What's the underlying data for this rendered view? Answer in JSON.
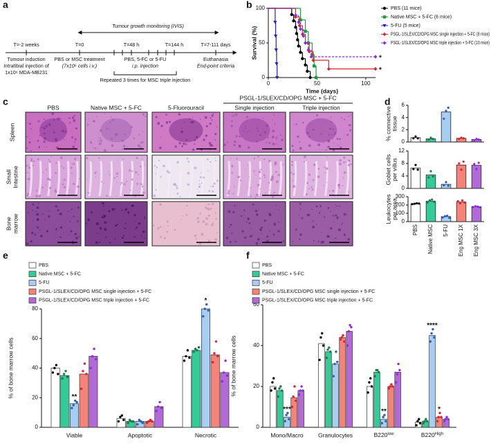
{
  "panel_labels": [
    "a",
    "b",
    "c",
    "d",
    "e",
    "f"
  ],
  "timeline": {
    "title": "Tumour growth monitoring (IVIS)",
    "time_points": [
      "T=-2 weeks",
      "T=0",
      "T=48 h",
      "T=144 h",
      "T=7-111 days"
    ],
    "steps": [
      [
        "Tumour induction",
        "Intratibial injection of",
        "1x10⁶ MDA-MB231"
      ],
      [
        "PBS or MSC treatment",
        "(7x10⁵ cells i.v.)"
      ],
      [
        "PBS, 5-FC or 5-FU",
        "i.p. injection"
      ],
      [
        "Euthanasia",
        "End-point criteria"
      ]
    ],
    "note": "Repeated 3 times for MSC triple injection"
  },
  "histology": {
    "columns": [
      "PBS",
      "Native MSC + 5-FC",
      "5-Fluorouracil"
    ],
    "group_header": "PSGL-1/SLEX/CD/OPG MSC + 5-FC",
    "group_columns": [
      "Single injection",
      "Triple injection"
    ],
    "rows": [
      [
        "Spleen"
      ],
      [
        "Small",
        "Intestine"
      ],
      [
        "Bone",
        "marrow"
      ]
    ]
  },
  "chart_data": [
    {
      "type": "line",
      "ylabel": "Survival (%)",
      "xlabel": "Time (days)",
      "xlim": [
        0,
        110
      ],
      "xticks": [
        0,
        50,
        100
      ],
      "ylim": [
        0,
        100
      ],
      "yticks": [
        0,
        50,
        100
      ],
      "series": [
        {
          "name": "PBS (11 mice)",
          "color": "#000000",
          "marker": "circle",
          "x": [
            0,
            24,
            26,
            28,
            29,
            30,
            31,
            33,
            35,
            38,
            40,
            43
          ],
          "values": [
            100,
            90.9,
            81.8,
            72.7,
            63.6,
            54.5,
            45.5,
            36.4,
            27.3,
            18.2,
            9.1,
            0
          ]
        },
        {
          "name": "Native MSC + 5-FC (6 mice)",
          "color": "#1a9a3a",
          "marker": "square",
          "x": [
            0,
            33,
            38,
            41,
            45,
            47,
            49
          ],
          "values": [
            100,
            83.3,
            66.7,
            50,
            33.3,
            16.7,
            0
          ]
        },
        {
          "name": "5-FU (5 mice)",
          "color": "#2020c0",
          "marker": "triangle",
          "x": [
            0,
            7,
            7.5,
            8,
            8.5,
            9
          ],
          "values": [
            100,
            80,
            60,
            40,
            20,
            0
          ]
        },
        {
          "name": "PSGL-1/SLEX/CD/OPG MSC single injection + 5-FC (8 mice)",
          "color": "#e0202a",
          "marker": "diamond",
          "x": [
            0,
            28,
            32,
            35,
            38,
            42,
            46,
            62,
            110
          ],
          "values": [
            100,
            87.5,
            75,
            62.5,
            50,
            37.5,
            25,
            12.5,
            12.5
          ],
          "annotation": "*"
        },
        {
          "name": "PSGL-1/SLEX/CD/OPG MSC triple injection + 5-FC (10 mice)",
          "color": "#8a2be2",
          "marker": "diamond",
          "dashed": true,
          "x": [
            0,
            28,
            31,
            33,
            36,
            38,
            41,
            44,
            110
          ],
          "values": [
            100,
            90,
            80,
            70,
            60,
            50,
            40,
            30,
            30
          ],
          "annotation": "*"
        }
      ]
    },
    {
      "type": "bar",
      "ylabel": [
        "% connective",
        "tissue"
      ],
      "ylim": [
        0,
        6
      ],
      "yticks": [
        0,
        2,
        4,
        6
      ],
      "values": [
        0.7,
        0.5,
        4.9,
        0.6,
        0.4
      ],
      "colors": [
        "#ffffff",
        "#33cc99",
        "#a8cdf2",
        "#f4847a",
        "#b36ad6"
      ],
      "point_colors": [
        "#000000",
        "#1a7a4a",
        "#2a5fc0",
        "#e0202a",
        "#8a2be2"
      ],
      "points": [
        [
          0.6,
          0.9,
          0.6
        ],
        [
          0.4,
          0.7,
          0.5
        ],
        [
          3.8,
          5.1,
          5.6
        ],
        [
          0.5,
          0.7,
          0.6
        ],
        [
          0.3,
          0.5,
          0.4
        ]
      ]
    },
    {
      "type": "bar",
      "ylabel": [
        "Goblet cells",
        "per villus"
      ],
      "ylim": [
        0,
        12
      ],
      "yticks": [
        0,
        4,
        8,
        12
      ],
      "values": [
        6.5,
        4.3,
        1.3,
        7.5,
        7.4
      ],
      "colors": [
        "#ffffff",
        "#33cc99",
        "#a8cdf2",
        "#f4847a",
        "#b36ad6"
      ],
      "point_colors": [
        "#000000",
        "#1a7a4a",
        "#2a5fc0",
        "#e0202a",
        "#8a2be2"
      ],
      "points": [
        [
          6.2,
          7.5,
          6
        ],
        [
          3.5,
          5.5,
          3.8
        ],
        [
          1,
          2,
          0.8
        ],
        [
          8,
          6,
          8.6
        ],
        [
          7.8,
          6.2,
          8.2
        ]
      ]
    },
    {
      "type": "bar",
      "ylabel": [
        "Leukocytes",
        "per area"
      ],
      "ylim": [
        0,
        300
      ],
      "yticks": [
        0,
        100,
        200,
        300
      ],
      "categories": [
        "PBS",
        "Native MSC",
        "5-FU",
        "Eng MSC 1X",
        "Eng MSC 3X"
      ],
      "values": [
        215,
        245,
        60,
        235,
        180
      ],
      "colors": [
        "#ffffff",
        "#33cc99",
        "#a8cdf2",
        "#f4847a",
        "#b36ad6"
      ],
      "point_colors": [
        "#000000",
        "#1a7a4a",
        "#2a5fc0",
        "#e0202a",
        "#8a2be2"
      ],
      "points": [
        [
          210,
          215,
          220,
          218
        ],
        [
          230,
          255,
          265,
          240
        ],
        [
          50,
          65,
          70,
          45
        ],
        [
          245,
          220,
          255,
          230
        ],
        [
          175,
          185,
          180,
          172
        ]
      ]
    },
    {
      "type": "bar",
      "ylabel": "% of bone marrow cells",
      "ylim": [
        0,
        80
      ],
      "yticks": [
        0,
        20,
        40,
        60,
        80
      ],
      "categories": [
        "Viable",
        "Apoptotic",
        "Necrotic"
      ],
      "series": [
        {
          "name": "PBS",
          "color": "#ffffff",
          "point_color": "#000000",
          "values": [
            40,
            6,
            48
          ],
          "points": [
            [
              37,
              40,
              42,
              36
            ],
            [
              4,
              7,
              8,
              5
            ],
            [
              45,
              48,
              52,
              47
            ]
          ]
        },
        {
          "name": "Native MSC + 5-FC",
          "color": "#33cc99",
          "point_color": "#1a7a4a",
          "values": [
            35,
            4,
            52
          ],
          "points": [
            [
              33,
              36,
              38,
              34
            ],
            [
              3,
              5,
              4,
              4
            ],
            [
              51,
              53,
              52,
              54
            ]
          ]
        },
        {
          "name": "5-FU",
          "color": "#a8cdf2",
          "point_color": "#2a5fc0",
          "values": [
            16,
            4,
            80
          ],
          "points": [
            [
              13,
              15,
              18,
              17
            ],
            [
              2,
              5,
              4,
              3
            ],
            [
              75,
              80,
              83,
              79
            ]
          ],
          "annotations": [
            "**",
            null,
            "*"
          ]
        },
        {
          "name": "PSGL-1/SLEX/CD/OPG MSC single injection + 5-FC",
          "color": "#f4847a",
          "point_color": "#e0202a",
          "values": [
            36,
            4,
            49
          ],
          "points": [
            [
              26,
              38,
              43,
              36
            ],
            [
              3,
              4,
              5,
              4
            ],
            [
              44,
              50,
              58,
              48
            ]
          ]
        },
        {
          "name": "PSGL-1/SLEX/CD/OPG MSC triple injection + 5-FC",
          "color": "#b36ad6",
          "point_color": "#8a2be2",
          "values": [
            48,
            14,
            37
          ],
          "points": [
            [
              40,
              48,
              53,
              46
            ],
            [
              11,
              14,
              17,
              13
            ],
            [
              31,
              37,
              45,
              35
            ]
          ]
        }
      ]
    },
    {
      "type": "bar",
      "ylabel": "% of bone marrow cells",
      "ylim": [
        0,
        60
      ],
      "yticks": [
        0,
        20,
        40,
        60
      ],
      "categories": [
        "Mono/Macro",
        "Granulocytes",
        "B220low",
        "B220High"
      ],
      "series": [
        {
          "name": "PBS",
          "color": "#ffffff",
          "point_color": "#000000",
          "values": [
            20,
            41,
            20,
            2.5
          ],
          "points": [
            [
              18,
              22,
              24,
              19
            ],
            [
              33,
              44,
              46,
              40
            ],
            [
              17,
              22,
              24,
              20
            ],
            [
              1,
              3,
              4,
              2
            ]
          ]
        },
        {
          "name": "Native MSC + 5-FC",
          "color": "#33cc99",
          "point_color": "#1a7a4a",
          "values": [
            18,
            37,
            27,
            3
          ],
          "points": [
            [
              15,
              19,
              20,
              18
            ],
            [
              34,
              38,
              39,
              37
            ],
            [
              25,
              28,
              28,
              27
            ],
            [
              2,
              3,
              4,
              3
            ]
          ]
        },
        {
          "name": "5-FU",
          "color": "#a8cdf2",
          "point_color": "#2a5fc0",
          "values": [
            5,
            31,
            4,
            45
          ],
          "points": [
            [
              3,
              6,
              7,
              4
            ],
            [
              25,
              31,
              37,
              32
            ],
            [
              2,
              5,
              6,
              3
            ],
            [
              42,
              46,
              48,
              44
            ]
          ],
          "annotations": [
            "***",
            null,
            "**",
            "****"
          ]
        },
        {
          "name": "PSGL-1/SLEX/CD/OPG MSC single injection + 5-FC",
          "color": "#f4847a",
          "point_color": "#e0202a",
          "values": [
            14.5,
            44,
            20,
            5
          ],
          "points": [
            [
              10,
              15,
              20,
              13
            ],
            [
              43,
              44,
              45,
              42
            ],
            [
              19,
              20,
              21,
              20
            ],
            [
              3,
              5,
              7,
              5
            ]
          ],
          "annotations": [
            null,
            null,
            null,
            "*"
          ]
        },
        {
          "name": "PSGL-1/SLEX/CD/OPG MSC triple injection + 5-FC",
          "color": "#b36ad6",
          "point_color": "#8a2be2",
          "values": [
            18,
            47,
            27,
            4
          ],
          "points": [
            [
              16,
              18,
              20,
              18
            ],
            [
              40,
              47,
              50,
              49
            ],
            [
              22,
              26,
              31,
              28
            ],
            [
              3,
              4,
              5,
              4
            ]
          ]
        }
      ]
    }
  ]
}
